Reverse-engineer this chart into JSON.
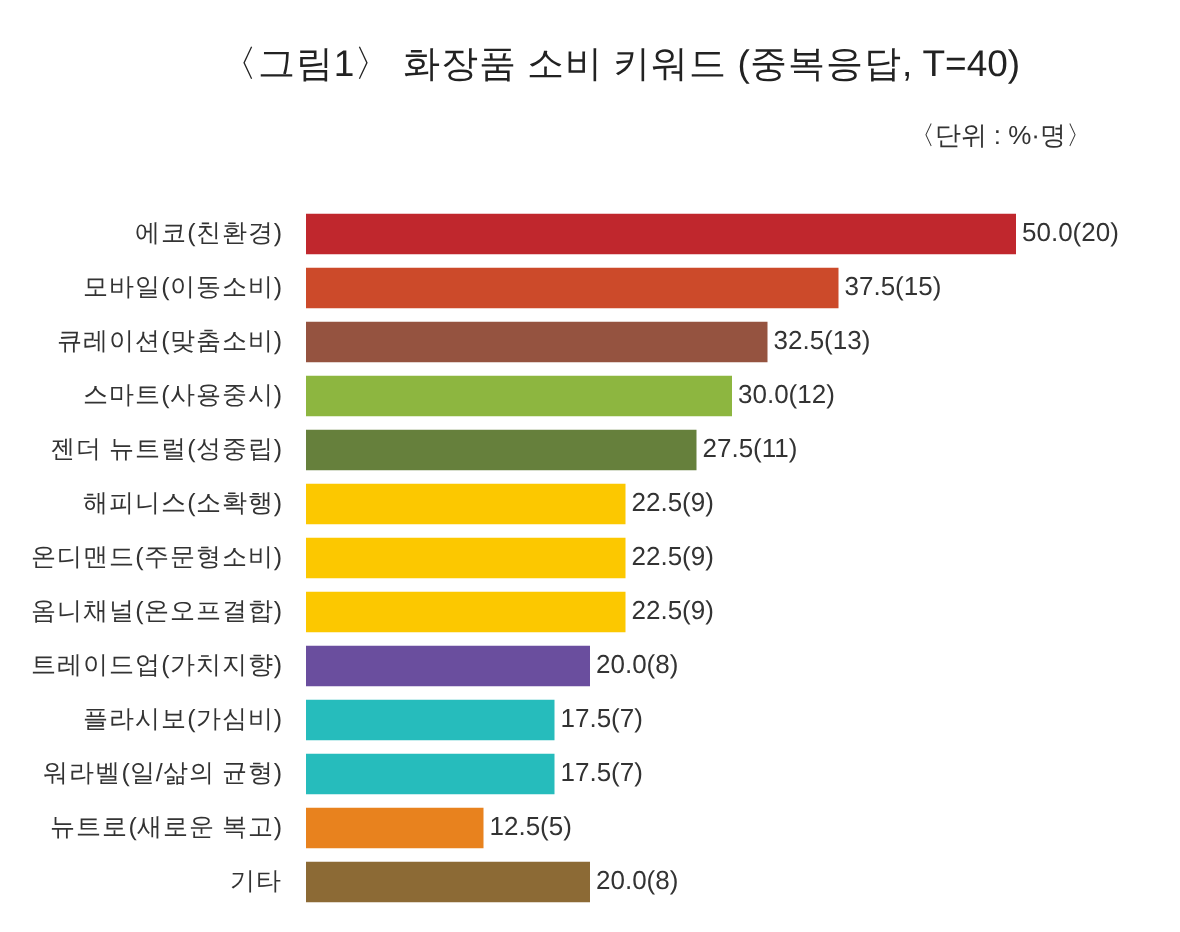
{
  "chart_data": {
    "type": "bar",
    "orientation": "horizontal",
    "title": "〈그림1〉 화장품 소비 키워드 (중복응답, T=40)",
    "subtitle": "〈단위 : %·명〉",
    "categories": [
      "에코(친환경)",
      "모바일(이동소비)",
      "큐레이션(맞춤소비)",
      "스마트(사용중시)",
      "젠더 뉴트럴(성중립)",
      "해피니스(소확행)",
      "온디맨드(주문형소비)",
      "옴니채널(온오프결합)",
      "트레이드업(가치지향)",
      "플라시보(가심비)",
      "워라벨(일/삶의 균형)",
      "뉴트로(새로운 복고)",
      "기타"
    ],
    "values": [
      50.0,
      37.5,
      32.5,
      30.0,
      27.5,
      22.5,
      22.5,
      22.5,
      20.0,
      17.5,
      17.5,
      12.5,
      20.0
    ],
    "colors": [
      "#c0272d",
      "#cc4a2a",
      "#955340",
      "#8db640",
      "#66803c",
      "#fcc800",
      "#fcc800",
      "#fcc800",
      "#6a4e9e",
      "#26bcbc",
      "#26bcbc",
      "#e8821e",
      "#8c6a35"
    ],
    "value_labels": [
      "50.0(20)",
      "37.5(15)",
      "32.5(13)",
      "30.0(12)",
      "27.5(11)",
      "22.5(9)",
      "22.5(9)",
      "22.5(9)",
      "20.0(8)",
      "17.5(7)",
      "17.5(7)",
      "12.5(5)",
      "20.0(8)"
    ],
    "tick_labels": "y"
  }
}
